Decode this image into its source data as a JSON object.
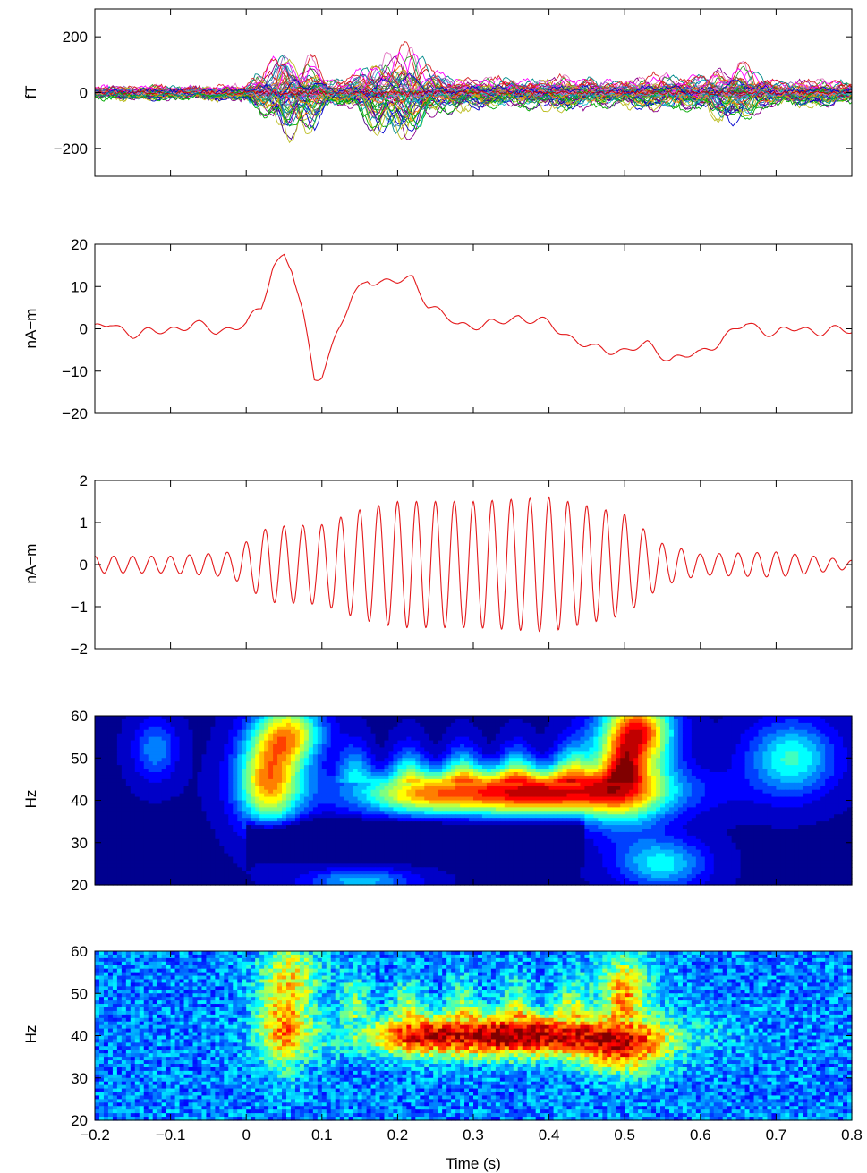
{
  "chart_data": [
    {
      "type": "line",
      "panel": "sensor-traces",
      "ylabel": "fT",
      "xlim": [
        -0.2,
        0.8
      ],
      "ylim": [
        -300,
        300
      ],
      "yticks": [
        "200",
        "0",
        "−200"
      ],
      "ytick_values": [
        200,
        0,
        -200
      ],
      "series_count": 60,
      "envelope": {
        "x": [
          -0.2,
          -0.1,
          0.0,
          0.03,
          0.05,
          0.07,
          0.09,
          0.11,
          0.13,
          0.16,
          0.2,
          0.23,
          0.26,
          0.3,
          0.4,
          0.5,
          0.6,
          0.65,
          0.7,
          0.8
        ],
        "amplitude": [
          30,
          30,
          30,
          150,
          210,
          170,
          140,
          60,
          60,
          150,
          200,
          170,
          90,
          60,
          70,
          60,
          90,
          130,
          60,
          50
        ]
      }
    },
    {
      "type": "line",
      "panel": "source-waveform",
      "ylabel": "nA−m",
      "xlim": [
        -0.2,
        0.8
      ],
      "ylim": [
        -20,
        20
      ],
      "yticks": [
        "20",
        "10",
        "0",
        "−10",
        "−20"
      ],
      "ytick_values": [
        20,
        10,
        0,
        -10,
        -20
      ],
      "color": "#e41a1c",
      "x": [
        -0.2,
        -0.18,
        -0.15,
        -0.12,
        -0.1,
        -0.07,
        -0.04,
        0.0,
        0.02,
        0.035,
        0.05,
        0.06,
        0.075,
        0.09,
        0.1,
        0.12,
        0.14,
        0.16,
        0.18,
        0.2,
        0.22,
        0.24,
        0.26,
        0.28,
        0.3,
        0.33,
        0.36,
        0.4,
        0.43,
        0.46,
        0.5,
        0.53,
        0.56,
        0.6,
        0.63,
        0.66,
        0.7,
        0.73,
        0.76,
        0.8
      ],
      "values": [
        0,
        1,
        -1,
        -1,
        0,
        1,
        -0.5,
        1,
        5,
        15,
        17.5,
        14,
        3,
        -11.5,
        -10.5,
        -1,
        7,
        12,
        11,
        11,
        12,
        6,
        3,
        1,
        1,
        1,
        3,
        1,
        -2,
        -5,
        -5,
        -4,
        -7,
        -6,
        -2,
        1,
        -1,
        0,
        -0.5,
        -0.5
      ]
    },
    {
      "type": "line",
      "panel": "filtered-oscillation",
      "ylabel": "nA−m",
      "xlim": [
        -0.2,
        0.8
      ],
      "ylim": [
        -2,
        2
      ],
      "yticks": [
        "2",
        "1",
        "0",
        "−1",
        "−2"
      ],
      "ytick_values": [
        2,
        1,
        0,
        -1,
        -2
      ],
      "color": "#e41a1c",
      "frequency_hz": 40,
      "envelope": {
        "x": [
          -0.2,
          -0.1,
          -0.02,
          0.03,
          0.1,
          0.15,
          0.2,
          0.3,
          0.4,
          0.45,
          0.5,
          0.55,
          0.6,
          0.7,
          0.8
        ],
        "amplitude": [
          0.2,
          0.2,
          0.3,
          0.9,
          0.95,
          1.3,
          1.5,
          1.5,
          1.6,
          1.4,
          1.2,
          0.5,
          0.25,
          0.3,
          0.1
        ]
      }
    },
    {
      "type": "heatmap",
      "panel": "time-frequency-smooth",
      "ylabel": "Hz",
      "xlim": [
        -0.2,
        0.8
      ],
      "ylim": [
        20,
        60
      ],
      "yticks": [
        "60",
        "50",
        "40",
        "30",
        "20"
      ],
      "ytick_values": [
        60,
        50,
        40,
        30,
        20
      ],
      "colormap": [
        "#00008f",
        "#0000ff",
        "#007fff",
        "#00ffff",
        "#7fff7f",
        "#ffff00",
        "#ff7f00",
        "#ff0000",
        "#800000"
      ],
      "blobs": [
        {
          "t": 0.35,
          "f": 42,
          "amp": 0.85,
          "st": 0.13,
          "sf": 4
        },
        {
          "t": 0.22,
          "f": 41,
          "amp": 0.18,
          "st": 0.04,
          "sf": 3
        },
        {
          "t": 0.4,
          "f": 41,
          "amp": 0.12,
          "st": 0.04,
          "sf": 3
        },
        {
          "t": 0.03,
          "f": 45,
          "amp": 0.7,
          "st": 0.03,
          "sf": 8
        },
        {
          "t": 0.06,
          "f": 56,
          "amp": 0.55,
          "st": 0.03,
          "sf": 5
        },
        {
          "t": 0.5,
          "f": 47,
          "amp": 0.55,
          "st": 0.04,
          "sf": 9
        },
        {
          "t": 0.52,
          "f": 57,
          "amp": 0.6,
          "st": 0.03,
          "sf": 5
        },
        {
          "t": 0.72,
          "f": 50,
          "amp": 0.4,
          "st": 0.04,
          "sf": 6
        },
        {
          "t": -0.12,
          "f": 52,
          "amp": 0.25,
          "st": 0.02,
          "sf": 5
        },
        {
          "t": 0.15,
          "f": 21,
          "amp": 0.3,
          "st": 0.05,
          "sf": 2
        },
        {
          "t": 0.55,
          "f": 25,
          "amp": 0.35,
          "st": 0.04,
          "sf": 4
        }
      ],
      "dark_band": {
        "t0": 0.0,
        "t1": 0.45,
        "f": 31,
        "depth": 0.35
      }
    },
    {
      "type": "heatmap",
      "panel": "time-frequency-raw",
      "xlabel": "Time (s)",
      "ylabel": "Hz",
      "xlim": [
        -0.2,
        0.8
      ],
      "ylim": [
        20,
        60
      ],
      "yticks": [
        "60",
        "50",
        "40",
        "30",
        "20"
      ],
      "ytick_values": [
        60,
        50,
        40,
        30,
        20
      ],
      "xticks": [
        "−0.2",
        "−0.1",
        "0",
        "0.1",
        "0.2",
        "0.3",
        "0.4",
        "0.5",
        "0.6",
        "0.7",
        "0.8"
      ],
      "xtick_values": [
        -0.2,
        -0.1,
        0,
        0.1,
        0.2,
        0.3,
        0.4,
        0.5,
        0.6,
        0.7,
        0.8
      ],
      "colormap": [
        "#00008f",
        "#0000ff",
        "#007fff",
        "#00ffff",
        "#7fff7f",
        "#ffff00",
        "#ff7f00",
        "#ff0000",
        "#800000"
      ],
      "blobs": [
        {
          "t": 0.35,
          "f": 40,
          "amp": 0.75,
          "st": 0.13,
          "sf": 3.5
        },
        {
          "t": 0.22,
          "f": 40,
          "amp": 0.2,
          "st": 0.03,
          "sf": 3
        },
        {
          "t": 0.05,
          "f": 42,
          "amp": 0.45,
          "st": 0.025,
          "sf": 7
        },
        {
          "t": 0.5,
          "f": 36,
          "amp": 0.4,
          "st": 0.04,
          "sf": 4
        },
        {
          "t": 0.06,
          "f": 55,
          "amp": 0.3,
          "st": 0.03,
          "sf": 5
        },
        {
          "t": 0.5,
          "f": 52,
          "amp": 0.3,
          "st": 0.03,
          "sf": 6
        }
      ],
      "base": 0.25,
      "noise": 0.12
    }
  ]
}
